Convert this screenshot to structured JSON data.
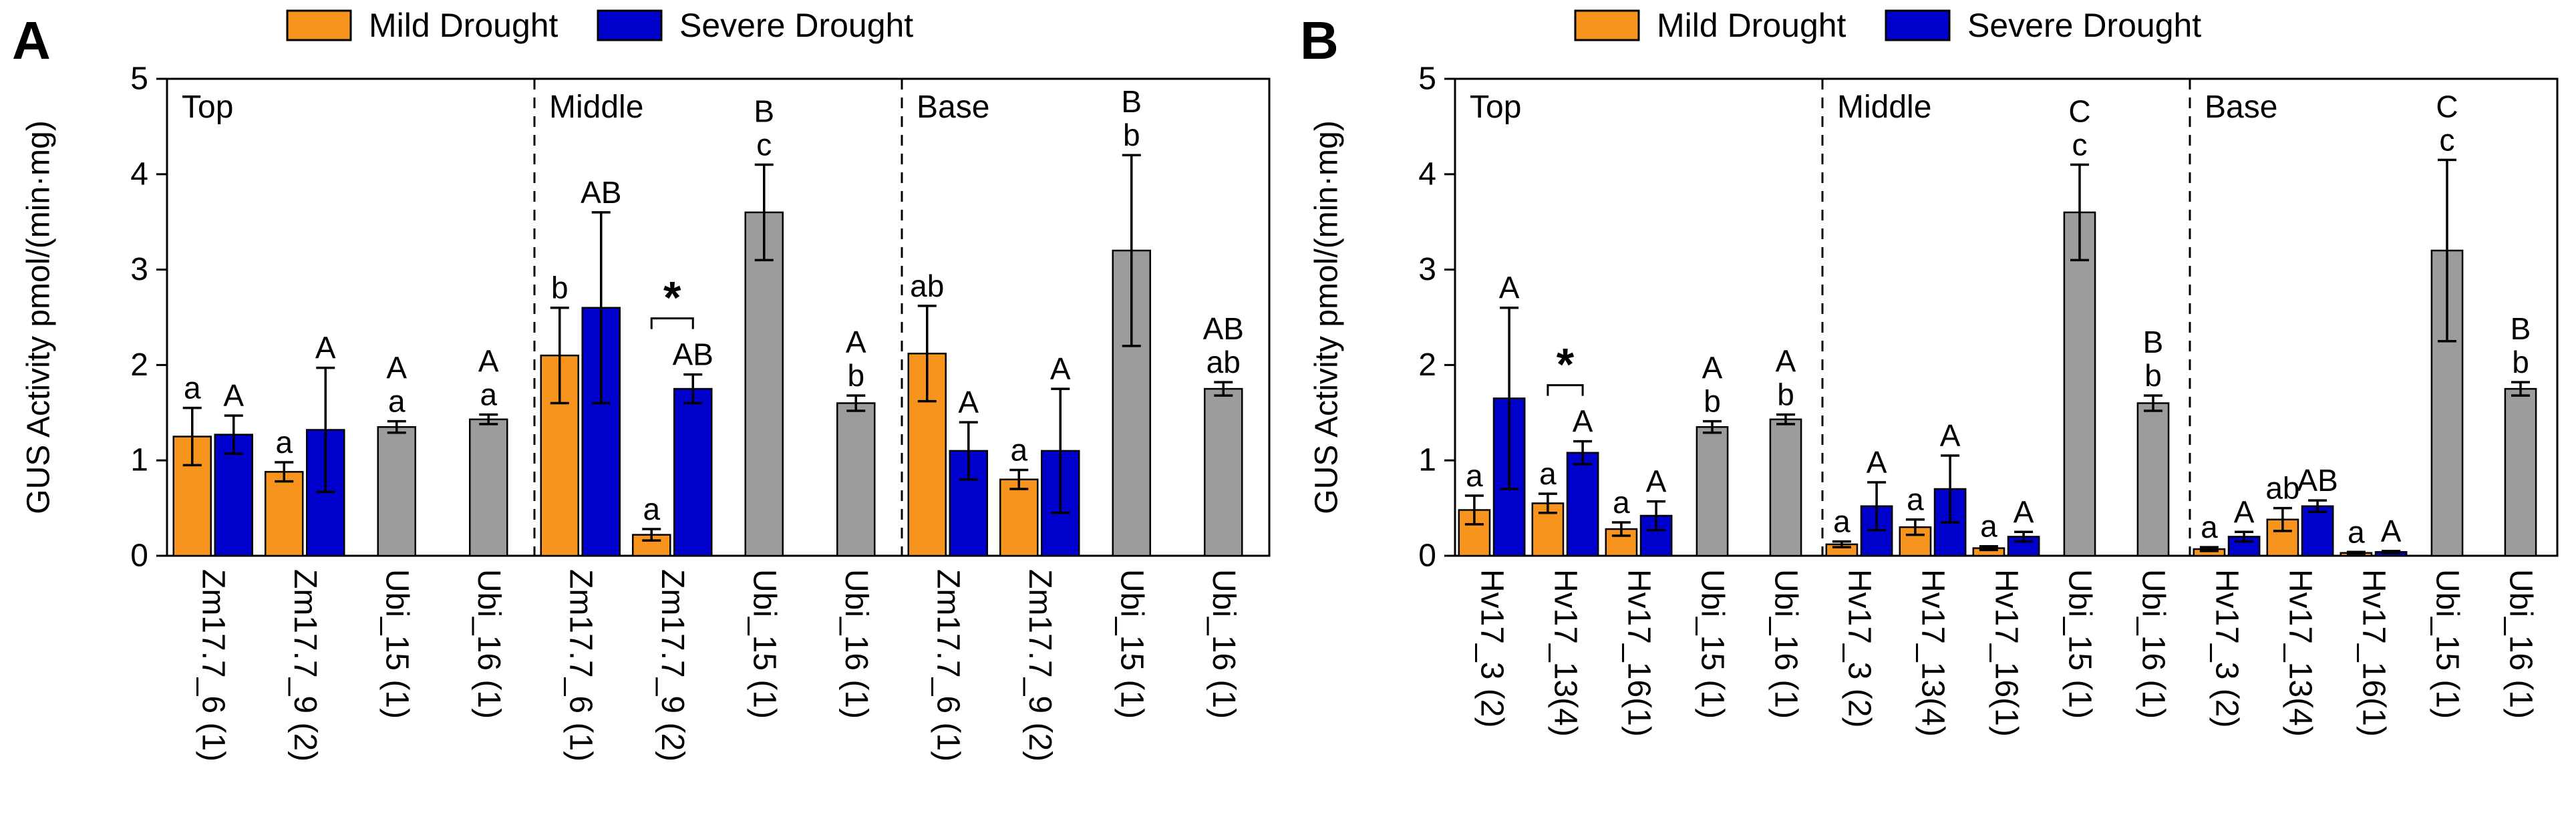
{
  "figure_title": "GUS Activity bar charts",
  "chart_data": [
    {
      "type": "bar",
      "panel_label": "A",
      "ylabel": "GUS Activity pmol/(min·mg)",
      "ylim": [
        0,
        5
      ],
      "yticks": [
        0,
        1,
        2,
        3,
        4,
        5
      ],
      "legend": [
        {
          "key": "mild",
          "label": "Mild Drought"
        },
        {
          "key": "severe",
          "label": "Severe Drought"
        }
      ],
      "series_colors": {
        "mild": "#F7941E",
        "severe": "#0000CD",
        "control": "#9C9C9C"
      },
      "sections": [
        {
          "name": "Top",
          "groups": [
            {
              "label": "Zm17.7_6 (1)",
              "sig": false,
              "bars": [
                {
                  "series": "mild",
                  "value": 1.25,
                  "err": 0.3,
                  "letters": [
                    "a"
                  ]
                },
                {
                  "series": "severe",
                  "value": 1.27,
                  "err": 0.2,
                  "letters": [
                    "A"
                  ]
                }
              ]
            },
            {
              "label": "Zm17.7_9 (2)",
              "sig": false,
              "bars": [
                {
                  "series": "mild",
                  "value": 0.88,
                  "err": 0.1,
                  "letters": [
                    "a"
                  ]
                },
                {
                  "series": "severe",
                  "value": 1.32,
                  "err": 0.65,
                  "letters": [
                    "A"
                  ]
                }
              ]
            },
            {
              "label": "Ubi_15 (1)",
              "sig": false,
              "bars": [
                {
                  "series": "control",
                  "value": 1.35,
                  "err": 0.06,
                  "letters": [
                    "A",
                    "a"
                  ]
                }
              ]
            },
            {
              "label": "Ubi_16 (1)",
              "sig": false,
              "bars": [
                {
                  "series": "control",
                  "value": 1.43,
                  "err": 0.05,
                  "letters": [
                    "A",
                    "a"
                  ]
                }
              ]
            }
          ]
        },
        {
          "name": "Middle",
          "groups": [
            {
              "label": "Zm17.7_6 (1)",
              "sig": false,
              "bars": [
                {
                  "series": "mild",
                  "value": 2.1,
                  "err": 0.5,
                  "letters": [
                    "b"
                  ]
                },
                {
                  "series": "severe",
                  "value": 2.6,
                  "err": 1.0,
                  "letters": [
                    "AB"
                  ]
                }
              ]
            },
            {
              "label": "Zm17.7_9 (2)",
              "sig": true,
              "bars": [
                {
                  "series": "mild",
                  "value": 0.22,
                  "err": 0.06,
                  "letters": [
                    "a"
                  ]
                },
                {
                  "series": "severe",
                  "value": 1.75,
                  "err": 0.15,
                  "letters": [
                    "AB"
                  ]
                }
              ]
            },
            {
              "label": "Ubi_15 (1)",
              "sig": false,
              "bars": [
                {
                  "series": "control",
                  "value": 3.6,
                  "err": 0.5,
                  "letters": [
                    "B",
                    "c"
                  ]
                }
              ]
            },
            {
              "label": "Ubi_16 (1)",
              "sig": false,
              "bars": [
                {
                  "series": "control",
                  "value": 1.6,
                  "err": 0.08,
                  "letters": [
                    "A",
                    "b"
                  ]
                }
              ]
            }
          ]
        },
        {
          "name": "Base",
          "groups": [
            {
              "label": "Zm17.7_6 (1)",
              "sig": false,
              "bars": [
                {
                  "series": "mild",
                  "value": 2.12,
                  "err": 0.5,
                  "letters": [
                    "ab"
                  ]
                },
                {
                  "series": "severe",
                  "value": 1.1,
                  "err": 0.3,
                  "letters": [
                    "A"
                  ]
                }
              ]
            },
            {
              "label": "Zm17.7_9 (2)",
              "sig": false,
              "bars": [
                {
                  "series": "mild",
                  "value": 0.8,
                  "err": 0.1,
                  "letters": [
                    "a"
                  ]
                },
                {
                  "series": "severe",
                  "value": 1.1,
                  "err": 0.65,
                  "letters": [
                    "A"
                  ]
                }
              ]
            },
            {
              "label": "Ubi_15 (1)",
              "sig": false,
              "bars": [
                {
                  "series": "control",
                  "value": 3.2,
                  "err": 1.0,
                  "letters": [
                    "B",
                    "b"
                  ]
                }
              ]
            },
            {
              "label": "Ubi_16 (1)",
              "sig": false,
              "bars": [
                {
                  "series": "control",
                  "value": 1.75,
                  "err": 0.07,
                  "letters": [
                    "AB",
                    "ab"
                  ]
                }
              ]
            }
          ]
        }
      ]
    },
    {
      "type": "bar",
      "panel_label": "B",
      "ylabel": "GUS Activity pmol/(min·mg)",
      "ylim": [
        0,
        5
      ],
      "yticks": [
        0,
        1,
        2,
        3,
        4,
        5
      ],
      "legend": [
        {
          "key": "mild",
          "label": "Mild Drought"
        },
        {
          "key": "severe",
          "label": "Severe Drought"
        }
      ],
      "series_colors": {
        "mild": "#F7941E",
        "severe": "#0000CD",
        "control": "#9C9C9C"
      },
      "sections": [
        {
          "name": "Top",
          "groups": [
            {
              "label": "Hv17_3 (2)",
              "sig": false,
              "bars": [
                {
                  "series": "mild",
                  "value": 0.48,
                  "err": 0.15,
                  "letters": [
                    "a"
                  ]
                },
                {
                  "series": "severe",
                  "value": 1.65,
                  "err": 0.95,
                  "letters": [
                    "A"
                  ]
                }
              ]
            },
            {
              "label": "Hv17_13(4)",
              "sig": true,
              "bars": [
                {
                  "series": "mild",
                  "value": 0.55,
                  "err": 0.1,
                  "letters": [
                    "a"
                  ]
                },
                {
                  "series": "severe",
                  "value": 1.08,
                  "err": 0.12,
                  "letters": [
                    "A"
                  ]
                }
              ]
            },
            {
              "label": "Hv17_16(1)",
              "sig": false,
              "bars": [
                {
                  "series": "mild",
                  "value": 0.28,
                  "err": 0.07,
                  "letters": [
                    "a"
                  ]
                },
                {
                  "series": "severe",
                  "value": 0.42,
                  "err": 0.15,
                  "letters": [
                    "A"
                  ]
                }
              ]
            },
            {
              "label": "Ubi_15 (1)",
              "sig": false,
              "bars": [
                {
                  "series": "control",
                  "value": 1.35,
                  "err": 0.06,
                  "letters": [
                    "A",
                    "b"
                  ]
                }
              ]
            },
            {
              "label": "Ubi_16 (1)",
              "sig": false,
              "bars": [
                {
                  "series": "control",
                  "value": 1.43,
                  "err": 0.05,
                  "letters": [
                    "A",
                    "b"
                  ]
                }
              ]
            }
          ]
        },
        {
          "name": "Middle",
          "groups": [
            {
              "label": "Hv17_3 (2)",
              "sig": false,
              "bars": [
                {
                  "series": "mild",
                  "value": 0.12,
                  "err": 0.03,
                  "letters": [
                    "a"
                  ]
                },
                {
                  "series": "severe",
                  "value": 0.52,
                  "err": 0.25,
                  "letters": [
                    "A"
                  ]
                }
              ]
            },
            {
              "label": "Hv17_13(4)",
              "sig": false,
              "bars": [
                {
                  "series": "mild",
                  "value": 0.3,
                  "err": 0.08,
                  "letters": [
                    "a"
                  ]
                },
                {
                  "series": "severe",
                  "value": 0.7,
                  "err": 0.35,
                  "letters": [
                    "A"
                  ]
                }
              ]
            },
            {
              "label": "Hv17_16(1)",
              "sig": false,
              "bars": [
                {
                  "series": "mild",
                  "value": 0.08,
                  "err": 0.02,
                  "letters": [
                    "a"
                  ]
                },
                {
                  "series": "severe",
                  "value": 0.2,
                  "err": 0.05,
                  "letters": [
                    "A"
                  ]
                }
              ]
            },
            {
              "label": "Ubi_15 (1)",
              "sig": false,
              "bars": [
                {
                  "series": "control",
                  "value": 3.6,
                  "err": 0.5,
                  "letters": [
                    "C",
                    "c"
                  ]
                }
              ]
            },
            {
              "label": "Ubi_16 (1)",
              "sig": false,
              "bars": [
                {
                  "series": "control",
                  "value": 1.6,
                  "err": 0.08,
                  "letters": [
                    "B",
                    "b"
                  ]
                }
              ]
            }
          ]
        },
        {
          "name": "Base",
          "groups": [
            {
              "label": "Hv17_3 (2)",
              "sig": false,
              "bars": [
                {
                  "series": "mild",
                  "value": 0.07,
                  "err": 0.02,
                  "letters": [
                    "a"
                  ]
                },
                {
                  "series": "severe",
                  "value": 0.2,
                  "err": 0.05,
                  "letters": [
                    "A"
                  ]
                }
              ]
            },
            {
              "label": "Hv17_13(4)",
              "sig": false,
              "bars": [
                {
                  "series": "mild",
                  "value": 0.38,
                  "err": 0.12,
                  "letters": [
                    "ab"
                  ]
                },
                {
                  "series": "severe",
                  "value": 0.52,
                  "err": 0.06,
                  "letters": [
                    "AB"
                  ]
                }
              ]
            },
            {
              "label": "Hv17_16(1)",
              "sig": false,
              "bars": [
                {
                  "series": "mild",
                  "value": 0.03,
                  "err": 0.01,
                  "letters": [
                    "a"
                  ]
                },
                {
                  "series": "severe",
                  "value": 0.04,
                  "err": 0.01,
                  "letters": [
                    "A"
                  ]
                }
              ]
            },
            {
              "label": "Ubi_15 (1)",
              "sig": false,
              "bars": [
                {
                  "series": "control",
                  "value": 3.2,
                  "err": 0.95,
                  "letters": [
                    "C",
                    "c"
                  ]
                }
              ]
            },
            {
              "label": "Ubi_16 (1)",
              "sig": false,
              "bars": [
                {
                  "series": "control",
                  "value": 1.75,
                  "err": 0.07,
                  "letters": [
                    "B",
                    "b"
                  ]
                }
              ]
            }
          ]
        }
      ]
    }
  ],
  "sig_marker": "*"
}
